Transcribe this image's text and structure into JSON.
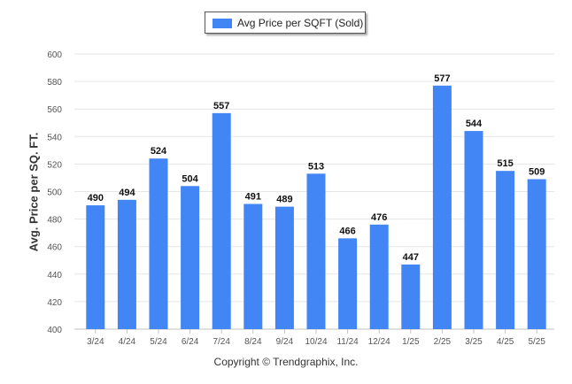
{
  "legend": {
    "label": "Avg Price per SQFT (Sold)"
  },
  "footer": {
    "copyright": "Copyright © Trendgraphix, Inc."
  },
  "colors": {
    "bar": "#4285f4",
    "grid": "#e6e6e6",
    "axis": "#c0c0c0"
  },
  "chart_data": {
    "type": "bar",
    "title": "",
    "xlabel": "",
    "ylabel": "Avg. Price per SQ. FT.",
    "ylim": [
      400,
      600
    ],
    "yticks": [
      400,
      420,
      440,
      460,
      480,
      500,
      520,
      540,
      560,
      580,
      600
    ],
    "grid": true,
    "legend_position": "top-center",
    "categories": [
      "3/24",
      "4/24",
      "5/24",
      "6/24",
      "7/24",
      "8/24",
      "9/24",
      "10/24",
      "11/24",
      "12/24",
      "1/25",
      "2/25",
      "3/25",
      "4/25",
      "5/25"
    ],
    "series": [
      {
        "name": "Avg Price per SQFT (Sold)",
        "values": [
          490,
          494,
          524,
          504,
          557,
          491,
          489,
          513,
          466,
          476,
          447,
          577,
          544,
          515,
          509
        ]
      }
    ]
  }
}
